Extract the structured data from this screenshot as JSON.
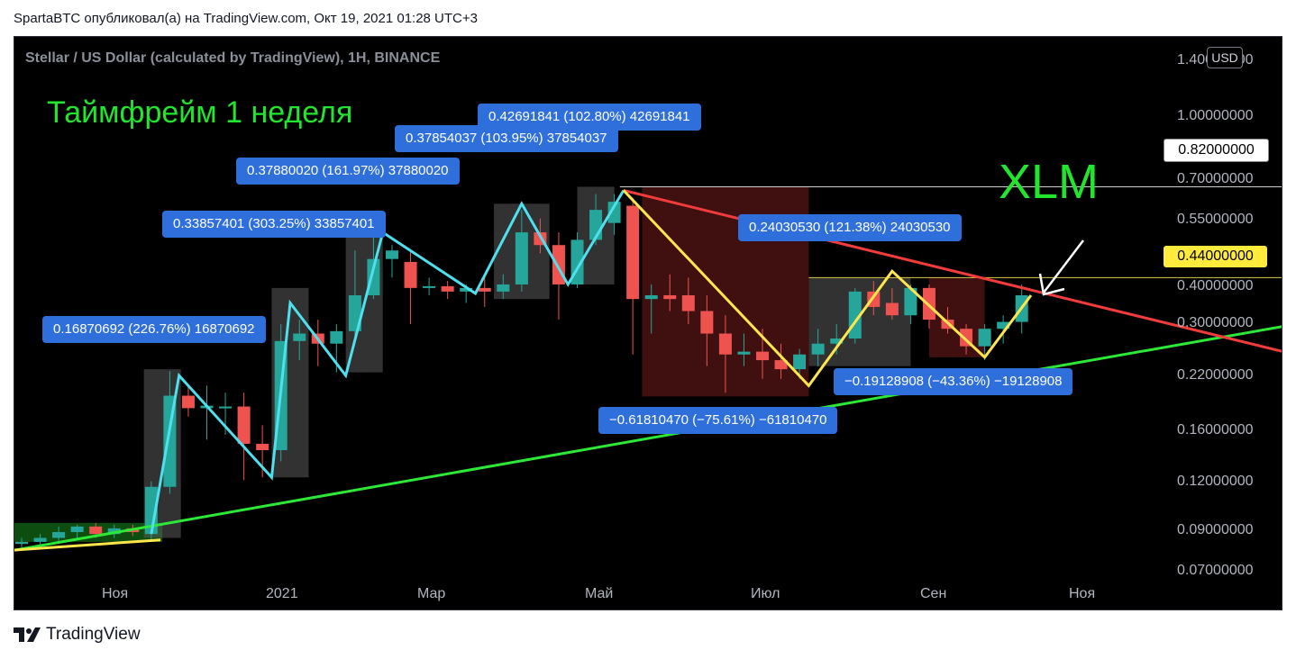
{
  "header": {
    "text": "SpartaBTC опубликовал(а) на TradingView.com, Окт 19, 2021 01:28 UTC+3"
  },
  "chart": {
    "symbol": "Stellar / US Dollar (calculated by TradingView), 1H, BINANCE",
    "title_timeframe": "Таймфрейм 1 неделя",
    "title_ticker": "XLM",
    "currency_badge": "USD",
    "price_tags": {
      "level_high": "0.82000000",
      "level_mid": "0.44000000"
    }
  },
  "callouts": [
    "0.16870692 (226.76%) 16870692",
    "0.33857401 (303.25%) 33857401",
    "0.37880020 (161.97%) 37880020",
    "0.37854037 (103.95%) 37854037",
    "0.42691841 (102.80%) 42691841",
    "0.24030530 (121.38%) 24030530",
    "−0.19128908 (−43.36%) −19128908",
    "−0.61810470 (−75.61%) −61810470"
  ],
  "footer": {
    "brand": "TradingView"
  },
  "chart_data": {
    "type": "candlestick",
    "scale": "log",
    "y_ticks": [
      "1.40000000",
      "1.00000000",
      "0.70000000",
      "0.55000000",
      "0.40000000",
      "0.30000000",
      "0.22000000",
      "0.16000000",
      "0.12000000",
      "0.09000000",
      "0.07000000"
    ],
    "y_tick_values": [
      1.4,
      1.0,
      0.7,
      0.55,
      0.4,
      0.3,
      0.22,
      0.16,
      0.12,
      0.09,
      0.07
    ],
    "x_ticks": [
      "Ноя",
      "2021",
      "Мар",
      "Май",
      "Июл",
      "Сен",
      "Ноя"
    ],
    "x_tick_slots": [
      5,
      14,
      22,
      31,
      40,
      49,
      58
    ],
    "candles": [
      {
        "slot": 0,
        "o": 0.071,
        "h": 0.074,
        "l": 0.069,
        "c": 0.072
      },
      {
        "slot": 1,
        "o": 0.072,
        "h": 0.076,
        "l": 0.069,
        "c": 0.074
      },
      {
        "slot": 2,
        "o": 0.074,
        "h": 0.08,
        "l": 0.071,
        "c": 0.077
      },
      {
        "slot": 3,
        "o": 0.077,
        "h": 0.081,
        "l": 0.074,
        "c": 0.08
      },
      {
        "slot": 4,
        "o": 0.08,
        "h": 0.082,
        "l": 0.074,
        "c": 0.076
      },
      {
        "slot": 5,
        "o": 0.076,
        "h": 0.081,
        "l": 0.074,
        "c": 0.079
      },
      {
        "slot": 6,
        "o": 0.079,
        "h": 0.081,
        "l": 0.075,
        "c": 0.077
      },
      {
        "slot": 7,
        "o": 0.076,
        "h": 0.109,
        "l": 0.073,
        "c": 0.105
      },
      {
        "slot": 8,
        "o": 0.105,
        "h": 0.232,
        "l": 0.1,
        "c": 0.196
      },
      {
        "slot": 9,
        "o": 0.196,
        "h": 0.21,
        "l": 0.17,
        "c": 0.18
      },
      {
        "slot": 10,
        "o": 0.18,
        "h": 0.21,
        "l": 0.145,
        "c": 0.183
      },
      {
        "slot": 11,
        "o": 0.18,
        "h": 0.2,
        "l": 0.15,
        "c": 0.182
      },
      {
        "slot": 12,
        "o": 0.182,
        "h": 0.2,
        "l": 0.11,
        "c": 0.141
      },
      {
        "slot": 13,
        "o": 0.141,
        "h": 0.16,
        "l": 0.112,
        "c": 0.135
      },
      {
        "slot": 14,
        "o": 0.135,
        "h": 0.32,
        "l": 0.125,
        "c": 0.285
      },
      {
        "slot": 15,
        "o": 0.285,
        "h": 0.33,
        "l": 0.25,
        "c": 0.3
      },
      {
        "slot": 16,
        "o": 0.3,
        "h": 0.33,
        "l": 0.24,
        "c": 0.28
      },
      {
        "slot": 17,
        "o": 0.28,
        "h": 0.32,
        "l": 0.23,
        "c": 0.305
      },
      {
        "slot": 18,
        "o": 0.305,
        "h": 0.53,
        "l": 0.29,
        "c": 0.39
      },
      {
        "slot": 19,
        "o": 0.39,
        "h": 0.6,
        "l": 0.38,
        "c": 0.5
      },
      {
        "slot": 20,
        "o": 0.5,
        "h": 0.55,
        "l": 0.44,
        "c": 0.53
      },
      {
        "slot": 21,
        "o": 0.49,
        "h": 0.53,
        "l": 0.32,
        "c": 0.41
      },
      {
        "slot": 22,
        "o": 0.41,
        "h": 0.44,
        "l": 0.39,
        "c": 0.415
      },
      {
        "slot": 23,
        "o": 0.415,
        "h": 0.43,
        "l": 0.38,
        "c": 0.4
      },
      {
        "slot": 24,
        "o": 0.4,
        "h": 0.42,
        "l": 0.37,
        "c": 0.41
      },
      {
        "slot": 25,
        "o": 0.41,
        "h": 0.45,
        "l": 0.36,
        "c": 0.4
      },
      {
        "slot": 26,
        "o": 0.4,
        "h": 0.45,
        "l": 0.38,
        "c": 0.42
      },
      {
        "slot": 27,
        "o": 0.42,
        "h": 0.7,
        "l": 0.4,
        "c": 0.6
      },
      {
        "slot": 28,
        "o": 0.6,
        "h": 0.66,
        "l": 0.52,
        "c": 0.55
      },
      {
        "slot": 29,
        "o": 0.55,
        "h": 0.6,
        "l": 0.33,
        "c": 0.42
      },
      {
        "slot": 30,
        "o": 0.42,
        "h": 0.6,
        "l": 0.41,
        "c": 0.57
      },
      {
        "slot": 31,
        "o": 0.57,
        "h": 0.78,
        "l": 0.55,
        "c": 0.7
      },
      {
        "slot": 32,
        "o": 0.64,
        "h": 0.78,
        "l": 0.59,
        "c": 0.74
      },
      {
        "slot": 33,
        "o": 0.72,
        "h": 0.76,
        "l": 0.26,
        "c": 0.38
      },
      {
        "slot": 34,
        "o": 0.38,
        "h": 0.42,
        "l": 0.3,
        "c": 0.39
      },
      {
        "slot": 35,
        "o": 0.39,
        "h": 0.45,
        "l": 0.35,
        "c": 0.38
      },
      {
        "slot": 36,
        "o": 0.39,
        "h": 0.44,
        "l": 0.32,
        "c": 0.35
      },
      {
        "slot": 37,
        "o": 0.35,
        "h": 0.39,
        "l": 0.24,
        "c": 0.3
      },
      {
        "slot": 38,
        "o": 0.3,
        "h": 0.34,
        "l": 0.2,
        "c": 0.26
      },
      {
        "slot": 39,
        "o": 0.26,
        "h": 0.3,
        "l": 0.24,
        "c": 0.265
      },
      {
        "slot": 40,
        "o": 0.265,
        "h": 0.31,
        "l": 0.22,
        "c": 0.25
      },
      {
        "slot": 41,
        "o": 0.25,
        "h": 0.28,
        "l": 0.22,
        "c": 0.235
      },
      {
        "slot": 42,
        "o": 0.235,
        "h": 0.27,
        "l": 0.22,
        "c": 0.26
      },
      {
        "slot": 43,
        "o": 0.26,
        "h": 0.31,
        "l": 0.24,
        "c": 0.28
      },
      {
        "slot": 44,
        "o": 0.28,
        "h": 0.32,
        "l": 0.26,
        "c": 0.29
      },
      {
        "slot": 45,
        "o": 0.29,
        "h": 0.41,
        "l": 0.28,
        "c": 0.4
      },
      {
        "slot": 46,
        "o": 0.4,
        "h": 0.43,
        "l": 0.34,
        "c": 0.36
      },
      {
        "slot": 47,
        "o": 0.37,
        "h": 0.41,
        "l": 0.33,
        "c": 0.34
      },
      {
        "slot": 48,
        "o": 0.34,
        "h": 0.42,
        "l": 0.32,
        "c": 0.41
      },
      {
        "slot": 49,
        "o": 0.41,
        "h": 0.42,
        "l": 0.31,
        "c": 0.33
      },
      {
        "slot": 50,
        "o": 0.33,
        "h": 0.36,
        "l": 0.3,
        "c": 0.31
      },
      {
        "slot": 51,
        "o": 0.31,
        "h": 0.32,
        "l": 0.26,
        "c": 0.275
      },
      {
        "slot": 52,
        "o": 0.275,
        "h": 0.32,
        "l": 0.25,
        "c": 0.31
      },
      {
        "slot": 53,
        "o": 0.31,
        "h": 0.34,
        "l": 0.28,
        "c": 0.325
      },
      {
        "slot": 54,
        "o": 0.325,
        "h": 0.42,
        "l": 0.3,
        "c": 0.39
      }
    ],
    "horizontal_levels": [
      0.82,
      0.44
    ],
    "colors": {
      "up": "#26a69a",
      "down": "#ef5350",
      "cyan_zigzag": "#4ee0ee",
      "yellow_zigzag": "#ffe64d",
      "support": "#2ee838",
      "resistance": "#f23c3c",
      "title": "#22e52e"
    }
  }
}
